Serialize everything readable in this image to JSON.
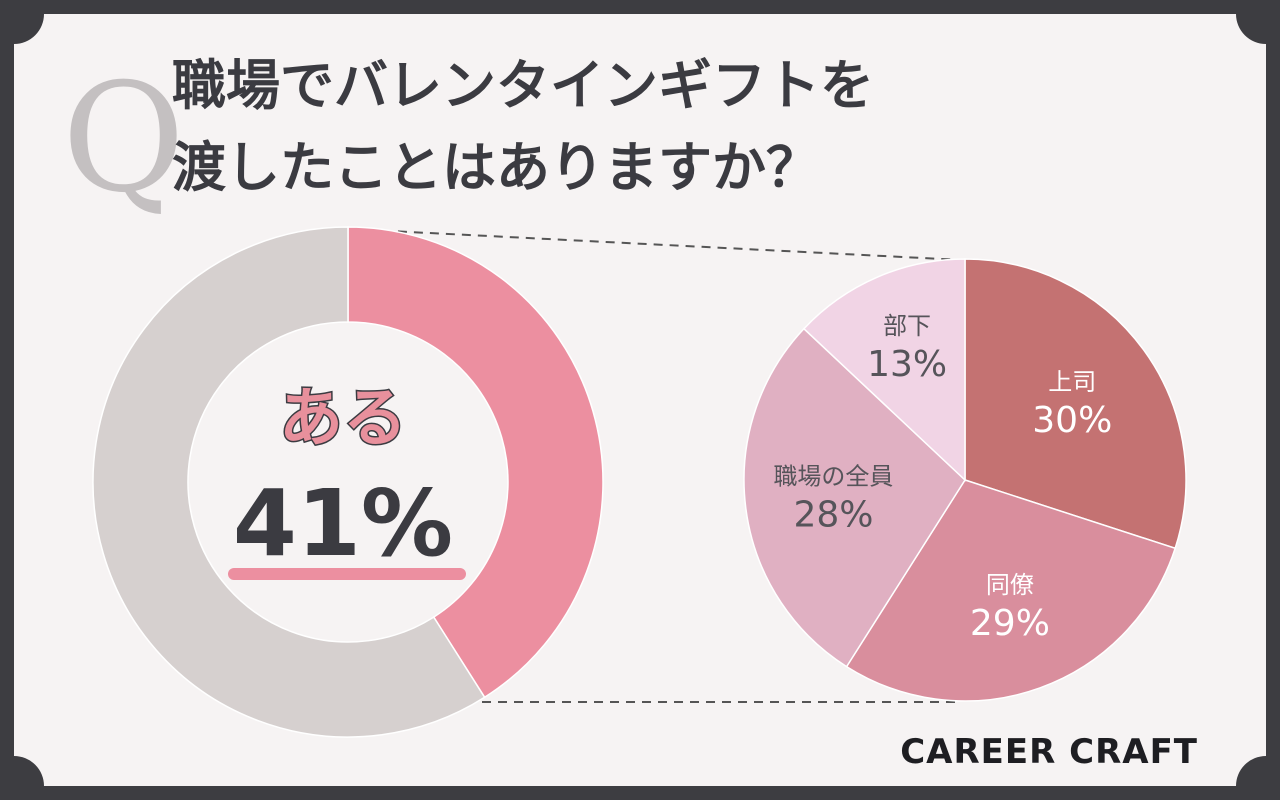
{
  "question": {
    "mark": "Q",
    "line1": "職場でバレンタインギフトを",
    "line2": "渡したことはありますか？"
  },
  "brand": "CAREER CRAFT",
  "colors": {
    "frame": "#3d3d41",
    "card": "#f6f3f3",
    "text": "#3b3b41",
    "yes": "#ec8fa0",
    "no": "#d6d0cf",
    "superior": "#c47272",
    "colleague": "#d98e9d",
    "everyone": "#e0b0c2",
    "subordinate": "#f1d4e5"
  },
  "chart_data": [
    {
      "type": "pie",
      "variant": "donut",
      "title": "",
      "categories": [
        "ある",
        ""
      ],
      "values": [
        41,
        59
      ],
      "unit": "%",
      "center_label": "ある",
      "center_value": "41%"
    },
    {
      "type": "pie",
      "title": "",
      "categories": [
        "上司",
        "同僚",
        "職場の全員",
        "部下"
      ],
      "labels": [
        "30%",
        "29%",
        "28%",
        "13%"
      ],
      "values": [
        30,
        29,
        28,
        13
      ],
      "unit": "%"
    }
  ]
}
